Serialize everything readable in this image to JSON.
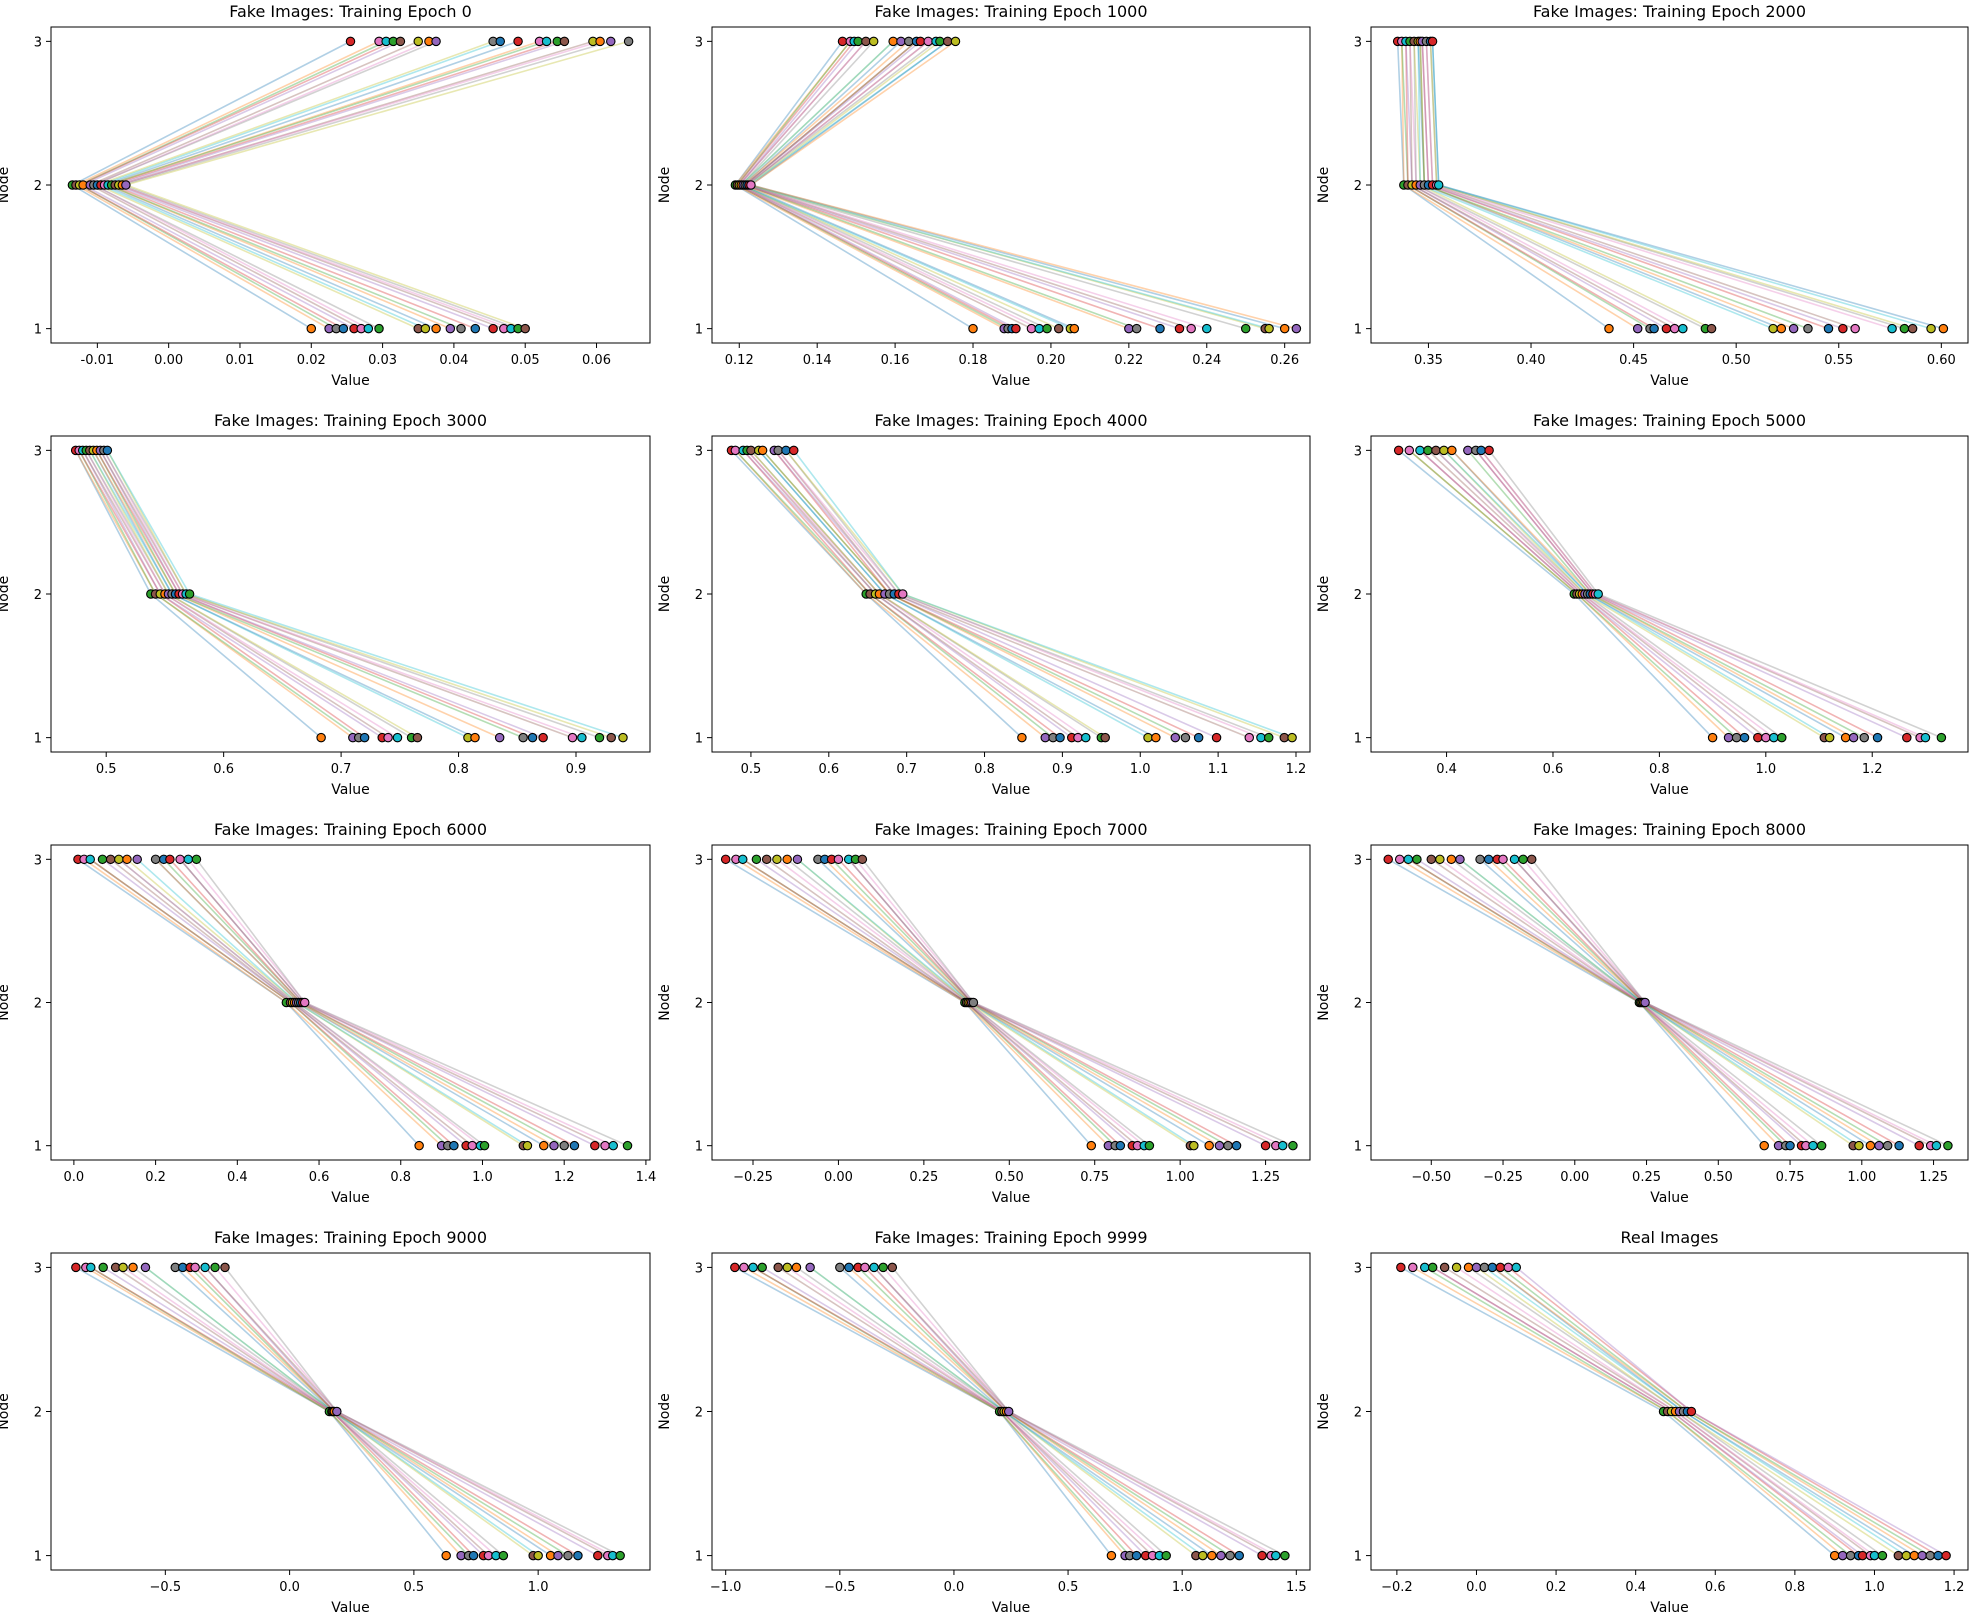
{
  "figure": {
    "colors": [
      "#1f77b4",
      "#ff7f0e",
      "#2ca02c",
      "#d62728",
      "#9467bd",
      "#8c564b",
      "#e377c2",
      "#7f7f7f",
      "#bcbd22",
      "#17becf"
    ],
    "marker_edge": "#000000"
  },
  "chart_data": [
    {
      "type": "line",
      "title": "Fake Images: Training Epoch 0",
      "xlabel": "Value",
      "ylabel": "Node",
      "nodes": [
        1,
        2,
        3
      ],
      "xlim": [
        -0.0165,
        0.0675
      ],
      "xticks": [
        -0.01,
        0.0,
        0.01,
        0.02,
        0.03,
        0.04,
        0.05,
        0.06
      ],
      "xtick_labels": [
        "-0.01",
        "0.00",
        "0.01",
        "0.02",
        "0.03",
        "0.04",
        "0.05",
        "0.06"
      ],
      "node1_values": [
        0.02,
        0.0225,
        0.0235,
        0.0245,
        0.026,
        0.027,
        0.028,
        0.0295,
        0.035,
        0.036,
        0.0375,
        0.0395,
        0.041,
        0.043,
        0.0455,
        0.047,
        0.048,
        0.049,
        0.05
      ],
      "node2_values": [
        -0.0135,
        -0.013,
        -0.0125,
        -0.012,
        -0.011,
        -0.0105,
        -0.01,
        -0.0095,
        -0.009,
        -0.0085,
        -0.008,
        -0.0075,
        -0.007,
        -0.0065,
        -0.006
      ],
      "node3_values": [
        0.0255,
        0.0295,
        0.0305,
        0.0315,
        0.0325,
        0.035,
        0.0365,
        0.0375,
        0.0455,
        0.0465,
        0.049,
        0.052,
        0.053,
        0.0545,
        0.0555,
        0.0595,
        0.0605,
        0.062,
        0.0645
      ]
    },
    {
      "type": "line",
      "title": "Fake Images: Training Epoch 1000",
      "xlabel": "Value",
      "ylabel": "Node",
      "nodes": [
        1,
        2,
        3
      ],
      "xlim": [
        0.113,
        0.2665
      ],
      "xticks": [
        0.12,
        0.14,
        0.16,
        0.18,
        0.2,
        0.22,
        0.24,
        0.26
      ],
      "xtick_labels": [
        "0.12",
        "0.14",
        "0.16",
        "0.18",
        "0.20",
        "0.22",
        "0.24",
        "0.26"
      ],
      "node1_values": [
        0.18,
        0.188,
        0.189,
        0.19,
        0.191,
        0.195,
        0.197,
        0.199,
        0.202,
        0.205,
        0.206,
        0.22,
        0.222,
        0.228,
        0.233,
        0.236,
        0.24,
        0.25,
        0.255,
        0.256,
        0.26,
        0.263
      ],
      "node2_values": [
        0.119,
        0.1195,
        0.12,
        0.1205,
        0.121,
        0.1215,
        0.122,
        0.1225,
        0.123
      ],
      "node3_values": [
        0.1465,
        0.1485,
        0.1495,
        0.1505,
        0.1525,
        0.1545,
        0.1595,
        0.1615,
        0.1635,
        0.1655,
        0.1665,
        0.1685,
        0.1705,
        0.1715,
        0.1735,
        0.1755
      ]
    },
    {
      "type": "line",
      "title": "Fake Images: Training Epoch 2000",
      "xlabel": "Value",
      "ylabel": "Node",
      "nodes": [
        1,
        2,
        3
      ],
      "xlim": [
        0.322,
        0.613
      ],
      "xticks": [
        0.35,
        0.4,
        0.45,
        0.5,
        0.55,
        0.6
      ],
      "xtick_labels": [
        "0.35",
        "0.40",
        "0.45",
        "0.50",
        "0.55",
        "0.60"
      ],
      "node1_values": [
        0.438,
        0.452,
        0.458,
        0.46,
        0.466,
        0.47,
        0.474,
        0.485,
        0.488,
        0.518,
        0.522,
        0.528,
        0.535,
        0.545,
        0.552,
        0.558,
        0.576,
        0.582,
        0.586,
        0.595,
        0.601
      ],
      "node2_values": [
        0.338,
        0.34,
        0.342,
        0.344,
        0.346,
        0.348,
        0.35,
        0.352,
        0.354,
        0.355
      ],
      "node3_values": [
        0.335,
        0.337,
        0.339,
        0.341,
        0.343,
        0.345,
        0.346,
        0.347,
        0.349,
        0.351,
        0.352
      ]
    },
    {
      "type": "line",
      "title": "Fake Images: Training Epoch 3000",
      "xlabel": "Value",
      "ylabel": "Node",
      "nodes": [
        1,
        2,
        3
      ],
      "xlim": [
        0.453,
        0.963
      ],
      "xticks": [
        0.5,
        0.6,
        0.7,
        0.8,
        0.9
      ],
      "xtick_labels": [
        "0.5",
        "0.6",
        "0.7",
        "0.8",
        "0.9"
      ],
      "node1_values": [
        0.683,
        0.71,
        0.715,
        0.72,
        0.735,
        0.74,
        0.748,
        0.76,
        0.765,
        0.808,
        0.814,
        0.835,
        0.855,
        0.863,
        0.872,
        0.897,
        0.905,
        0.92,
        0.93,
        0.94
      ],
      "node2_values": [
        0.538,
        0.542,
        0.546,
        0.55,
        0.553,
        0.556,
        0.559,
        0.562,
        0.565,
        0.568,
        0.571
      ],
      "node3_values": [
        0.474,
        0.477,
        0.48,
        0.483,
        0.486,
        0.489,
        0.492,
        0.495,
        0.498,
        0.501
      ]
    },
    {
      "type": "line",
      "title": "Fake Images: Training Epoch 4000",
      "xlabel": "Value",
      "ylabel": "Node",
      "nodes": [
        1,
        2,
        3
      ],
      "xlim": [
        0.45,
        1.218
      ],
      "xticks": [
        0.5,
        0.6,
        0.7,
        0.8,
        0.9,
        1.0,
        1.1,
        1.2
      ],
      "xtick_labels": [
        "0.5",
        "0.6",
        "0.7",
        "0.8",
        "0.9",
        "1.0",
        "1.1",
        "1.2"
      ],
      "node1_values": [
        0.848,
        0.878,
        0.888,
        0.897,
        0.912,
        0.92,
        0.93,
        0.95,
        0.955,
        1.01,
        1.02,
        1.045,
        1.058,
        1.075,
        1.098,
        1.14,
        1.155,
        1.165,
        1.185,
        1.195
      ],
      "node2_values": [
        0.648,
        0.653,
        0.66,
        0.665,
        0.672,
        0.678,
        0.684,
        0.69,
        0.695
      ],
      "node3_values": [
        0.475,
        0.48,
        0.49,
        0.495,
        0.5,
        0.51,
        0.515,
        0.53,
        0.535,
        0.545,
        0.555
      ]
    },
    {
      "type": "line",
      "title": "Fake Images: Training Epoch 5000",
      "xlabel": "Value",
      "ylabel": "Node",
      "nodes": [
        1,
        2,
        3
      ],
      "xlim": [
        0.258,
        1.38
      ],
      "xticks": [
        0.4,
        0.6,
        0.8,
        1.0,
        1.2
      ],
      "xtick_labels": [
        "0.4",
        "0.6",
        "0.8",
        "1.0",
        "1.2"
      ],
      "node1_values": [
        0.9,
        0.93,
        0.945,
        0.96,
        0.985,
        1.0,
        1.015,
        1.03,
        1.11,
        1.12,
        1.15,
        1.165,
        1.185,
        1.21,
        1.265,
        1.29,
        1.3,
        1.33
      ],
      "node2_values": [
        0.64,
        0.645,
        0.65,
        0.655,
        0.66,
        0.665,
        0.67,
        0.675,
        0.68,
        0.685
      ],
      "node3_values": [
        0.31,
        0.33,
        0.35,
        0.365,
        0.38,
        0.395,
        0.41,
        0.44,
        0.455,
        0.465,
        0.48
      ]
    },
    {
      "type": "line",
      "title": "Fake Images: Training Epoch 6000",
      "xlabel": "Value",
      "ylabel": "Node",
      "nodes": [
        1,
        2,
        3
      ],
      "xlim": [
        -0.056,
        1.41
      ],
      "xticks": [
        0.0,
        0.2,
        0.4,
        0.6,
        0.8,
        1.0,
        1.2,
        1.4
      ],
      "xtick_labels": [
        "0.0",
        "0.2",
        "0.4",
        "0.6",
        "0.8",
        "1.0",
        "1.2",
        "1.4"
      ],
      "node1_values": [
        0.845,
        0.9,
        0.915,
        0.93,
        0.96,
        0.975,
        0.995,
        1.005,
        1.1,
        1.11,
        1.15,
        1.175,
        1.2,
        1.225,
        1.275,
        1.3,
        1.32,
        1.355
      ],
      "node2_values": [
        0.52,
        0.53,
        0.535,
        0.54,
        0.545,
        0.55,
        0.555,
        0.56,
        0.565
      ],
      "node3_values": [
        0.01,
        0.025,
        0.04,
        0.07,
        0.09,
        0.11,
        0.13,
        0.155,
        0.2,
        0.22,
        0.235,
        0.26,
        0.28,
        0.3
      ]
    },
    {
      "type": "line",
      "title": "Fake Images: Training Epoch 7000",
      "xlabel": "Value",
      "ylabel": "Node",
      "nodes": [
        1,
        2,
        3
      ],
      "xlim": [
        -0.37,
        1.38
      ],
      "xticks": [
        -0.25,
        0.0,
        0.25,
        0.5,
        0.75,
        1.0,
        1.25
      ],
      "xtick_labels": [
        "−0.25",
        "0.00",
        "0.25",
        "0.50",
        "0.75",
        "1.00",
        "1.25"
      ],
      "node1_values": [
        0.74,
        0.79,
        0.81,
        0.825,
        0.86,
        0.875,
        0.895,
        0.91,
        1.03,
        1.04,
        1.085,
        1.115,
        1.14,
        1.165,
        1.25,
        1.28,
        1.3,
        1.33
      ],
      "node2_values": [
        0.37,
        0.375,
        0.38,
        0.385,
        0.39,
        0.395
      ],
      "node3_values": [
        -0.33,
        -0.3,
        -0.28,
        -0.24,
        -0.21,
        -0.18,
        -0.15,
        -0.12,
        -0.06,
        -0.04,
        -0.02,
        0.0,
        0.03,
        0.05,
        0.07
      ]
    },
    {
      "type": "line",
      "title": "Fake Images: Training Epoch 8000",
      "xlabel": "Value",
      "ylabel": "Node",
      "nodes": [
        1,
        2,
        3
      ],
      "xlim": [
        -0.71,
        1.37
      ],
      "xticks": [
        -0.5,
        -0.25,
        0.0,
        0.25,
        0.5,
        0.75,
        1.0,
        1.25
      ],
      "xtick_labels": [
        "−0.50",
        "−0.25",
        "0.00",
        "0.25",
        "0.50",
        "0.75",
        "1.00",
        "1.25"
      ],
      "node1_values": [
        0.66,
        0.71,
        0.735,
        0.75,
        0.79,
        0.805,
        0.83,
        0.86,
        0.97,
        0.99,
        1.03,
        1.06,
        1.09,
        1.13,
        1.2,
        1.24,
        1.26,
        1.3
      ],
      "node2_values": [
        0.225,
        0.23,
        0.235,
        0.24,
        0.245
      ],
      "node3_values": [
        -0.65,
        -0.61,
        -0.58,
        -0.55,
        -0.5,
        -0.47,
        -0.43,
        -0.4,
        -0.33,
        -0.3,
        -0.27,
        -0.25,
        -0.21,
        -0.18,
        -0.15
      ]
    },
    {
      "type": "line",
      "title": "Fake Images: Training Epoch 9000",
      "xlabel": "Value",
      "ylabel": "Node",
      "nodes": [
        1,
        2,
        3
      ],
      "xlim": [
        -0.96,
        1.45
      ],
      "xticks": [
        -0.5,
        0.0,
        0.5,
        1.0
      ],
      "xtick_labels": [
        "−0.5",
        "0.0",
        "0.5",
        "1.0"
      ],
      "node1_values": [
        0.63,
        0.69,
        0.72,
        0.74,
        0.78,
        0.8,
        0.83,
        0.86,
        0.98,
        1.0,
        1.05,
        1.08,
        1.12,
        1.16,
        1.24,
        1.28,
        1.3,
        1.33
      ],
      "node2_values": [
        0.16,
        0.17,
        0.175,
        0.18,
        0.19
      ],
      "node3_values": [
        -0.86,
        -0.82,
        -0.8,
        -0.75,
        -0.7,
        -0.67,
        -0.63,
        -0.58,
        -0.46,
        -0.43,
        -0.4,
        -0.38,
        -0.34,
        -0.3,
        -0.26
      ]
    },
    {
      "type": "line",
      "title": "Fake Images: Training Epoch 9999",
      "xlabel": "Value",
      "ylabel": "Node",
      "nodes": [
        1,
        2,
        3
      ],
      "xlim": [
        -1.06,
        1.56
      ],
      "xticks": [
        -1.0,
        -0.5,
        0.0,
        0.5,
        1.0,
        1.5
      ],
      "xtick_labels": [
        "−1.0",
        "−0.5",
        "0.0",
        "0.5",
        "1.0",
        "1.5"
      ],
      "node1_values": [
        0.69,
        0.75,
        0.77,
        0.8,
        0.84,
        0.87,
        0.9,
        0.93,
        1.06,
        1.09,
        1.13,
        1.17,
        1.21,
        1.25,
        1.35,
        1.39,
        1.41,
        1.45
      ],
      "node2_values": [
        0.2,
        0.21,
        0.22,
        0.23,
        0.24
      ],
      "node3_values": [
        -0.96,
        -0.92,
        -0.88,
        -0.84,
        -0.77,
        -0.73,
        -0.69,
        -0.63,
        -0.5,
        -0.46,
        -0.42,
        -0.39,
        -0.35,
        -0.31,
        -0.27
      ]
    },
    {
      "type": "line",
      "title": "Real Images",
      "xlabel": "Value",
      "ylabel": "Node",
      "nodes": [
        1,
        2,
        3
      ],
      "xlim": [
        -0.265,
        1.235
      ],
      "xticks": [
        -0.2,
        0.0,
        0.2,
        0.4,
        0.6,
        0.8,
        1.0,
        1.2
      ],
      "xtick_labels": [
        "−0.2",
        "0.0",
        "0.2",
        "0.4",
        "0.6",
        "0.8",
        "1.0",
        "1.2"
      ],
      "node1_values": [
        0.9,
        0.92,
        0.94,
        0.96,
        0.97,
        0.99,
        1.0,
        1.02,
        1.06,
        1.08,
        1.1,
        1.12,
        1.14,
        1.16,
        1.18
      ],
      "node2_values": [
        0.47,
        0.48,
        0.49,
        0.5,
        0.51,
        0.52,
        0.53,
        0.54
      ],
      "node3_values": [
        -0.19,
        -0.16,
        -0.13,
        -0.11,
        -0.08,
        -0.05,
        -0.02,
        0.0,
        0.02,
        0.04,
        0.06,
        0.08,
        0.1
      ]
    }
  ]
}
